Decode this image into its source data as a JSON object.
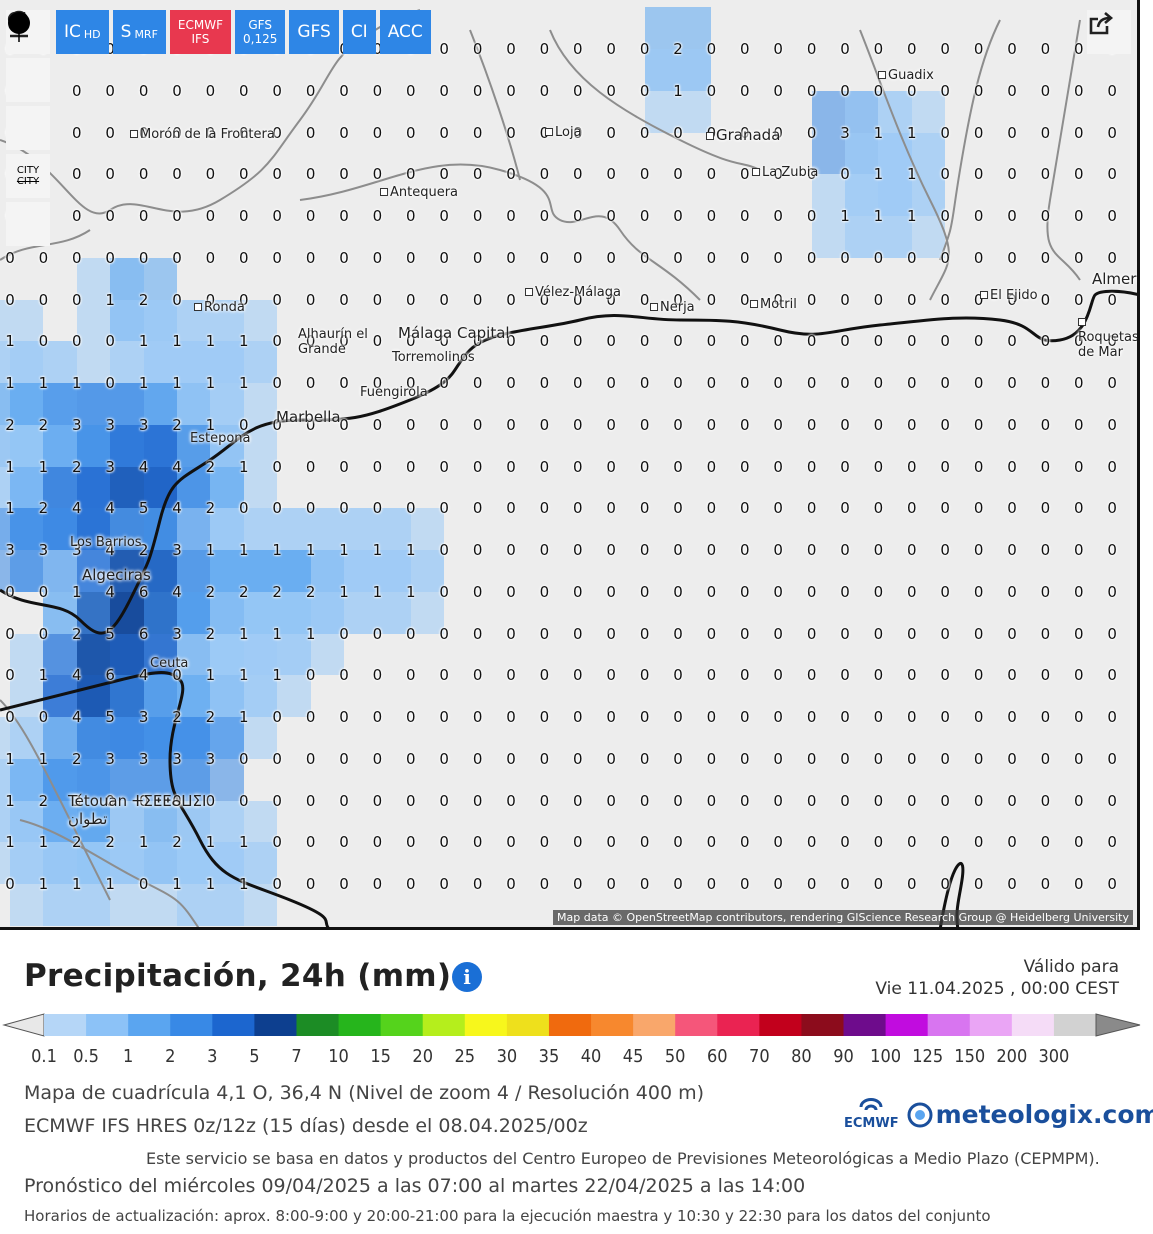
{
  "toolbar": {
    "buttons": [
      {
        "main": "IC",
        "sub": "HD"
      },
      {
        "main": "S",
        "sub": "MRF"
      },
      {
        "main": "ECMWF",
        "sub": "IFS"
      },
      {
        "main": "GFS",
        "sub": "0,125"
      },
      {
        "main": "GFS",
        "sub": ""
      },
      {
        "main": "CI",
        "sub": ""
      },
      {
        "main": "ACC",
        "sub": ""
      }
    ],
    "active_index": 2
  },
  "side_controls": {
    "icons": [
      "refresh-icon",
      "location-pin-icon",
      "zoom-icon",
      "city-toggle-icon",
      "marker-icon"
    ],
    "city_toggle_text_top": "CITY",
    "city_toggle_text_bottom": "CITY"
  },
  "map": {
    "grid_values": [
      "00000000000000000000200000000000000",
      "00000000000000000000100000000000000",
      "00000000000000000000000003110000000",
      "00000000000000000000000000110000000",
      "00000000000000000000000001110000000",
      "00000000000000000000000000000000000",
      "00012000000000000000000000000000000",
      "10001111000000000000000000000000000",
      "11101111000000000000000000000000000",
      "22333210000000000000000000000000000",
      "11234421000000000000000000000000000",
      "12445420000000000000000000000000000",
      "33342311111110000000000000000000000",
      "00146422221110000000000000000000000",
      "00256321110000000000000000000000000",
      "01464011100000000000000000000000000",
      "00453221000000000000000000000000000",
      "11233330000000000000000000000000000",
      "12300000000000000000000000000000000",
      "11221211000000000000000000000000000",
      "01110111000000000000000000000000000"
    ],
    "cities": [
      {
        "name": "Morón de la Frontera",
        "big": false
      },
      {
        "name": "Antequera",
        "big": false
      },
      {
        "name": "Loja",
        "big": false
      },
      {
        "name": "Granada",
        "big": true
      },
      {
        "name": "Guadix",
        "big": false
      },
      {
        "name": "La Zubia",
        "big": false
      },
      {
        "name": "Ronda",
        "big": false
      },
      {
        "name": "Vélez-Málaga",
        "big": false
      },
      {
        "name": "Nerja",
        "big": false
      },
      {
        "name": "Motril",
        "big": false
      },
      {
        "name": "El Ejido",
        "big": false
      },
      {
        "name": "Roquetas de Mar",
        "big": false
      },
      {
        "name": "Alhaurín el Grande",
        "big": false
      },
      {
        "name": "Málaga Capital",
        "big": true
      },
      {
        "name": "Torremolinos",
        "big": false
      },
      {
        "name": "Fuengirola",
        "big": false
      },
      {
        "name": "Marbella",
        "big": true
      },
      {
        "name": "Estepona",
        "big": false
      },
      {
        "name": "Los Barrios",
        "big": false
      },
      {
        "name": "Algeciras",
        "big": true
      },
      {
        "name": "Ceuta",
        "big": false
      },
      {
        "name": "Tétouan ⵜⵉⵟⵟⴰⵡⵉⵏ تطوان",
        "big": true
      },
      {
        "name": "Almería",
        "big": true
      }
    ],
    "attribution": "Map data © OpenStreetMap contributors, rendering GIScience Research Group @ Heidelberg University"
  },
  "legend": {
    "title": "Precipitación, 24h (mm)",
    "valid_label": "Válido para",
    "valid_date": "Vie 11.04.2025 , 00:00 CEST",
    "scale_labels": [
      "0.1",
      "0.5",
      "1",
      "2",
      "3",
      "5",
      "7",
      "10",
      "15",
      "20",
      "25",
      "30",
      "35",
      "40",
      "45",
      "50",
      "60",
      "70",
      "80",
      "90",
      "100",
      "125",
      "150",
      "200",
      "300"
    ],
    "scale_colors": [
      "#b5d6f7",
      "#8cc2f7",
      "#5aa5f0",
      "#3889e6",
      "#1c66cf",
      "#0d3f8f",
      "#1c8c25",
      "#26b51c",
      "#55d31c",
      "#b5ee1c",
      "#f7f71c",
      "#eee01c",
      "#f06a0e",
      "#f7882e",
      "#f9a76b",
      "#f5567a",
      "#ea2352",
      "#c2001c",
      "#8c0c1c",
      "#6e0c8c",
      "#c10cdf",
      "#d875f0",
      "#eaa5f5",
      "#f5dcf7",
      "#d2d2d2"
    ]
  },
  "info": {
    "grid": "Mapa de cuadrícula 4,1 O, 36,4 N (Nivel de zoom 4 / Resolución 400 m)",
    "model": "ECMWF IFS HRES 0z/12z (15 días) desde el 08.04.2025/00z",
    "service": "Este servicio se basa en datos y productos del Centro Europeo de Previsiones Meteorológicas a Medio Plazo (CEPMPM).",
    "forecast": "Pronóstico del miércoles 09/04/2025 a las 07:00 al martes 22/04/2025 a las 14:00",
    "updates": "Horarios de actualización: aprox. 8:00-9:00 y 20:00-21:00 para la ejecución maestra y 10:30 y 22:30 para los datos del conjunto"
  },
  "logos": {
    "ecmwf": "ECMWF",
    "meteologix": "meteologix.com"
  },
  "colors": {
    "accent": "#2e86e6",
    "active": "#e8384f",
    "map_bg": "#ededed"
  }
}
